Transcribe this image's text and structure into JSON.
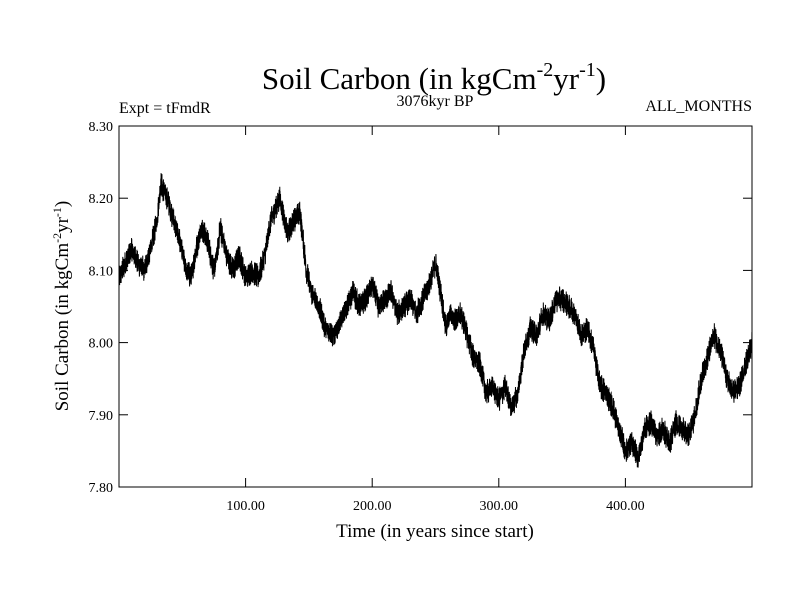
{
  "chart_data": {
    "type": "line",
    "title": {
      "main": "Soil Carbon (in kgCm",
      "sup1": "-2",
      "mid": "yr",
      "sup2": "-1",
      "end": ")"
    },
    "subtitle_left": "Expt = tFmdR",
    "subtitle_center": "3076kyr BP",
    "subtitle_right": "ALL_MONTHS",
    "xlabel": "Time (in years since start)",
    "ylabel": {
      "main": "Soil Carbon (in kgCm",
      "sup1": "-2",
      "mid": "yr",
      "sup2": "-1",
      "end": ")"
    },
    "xlim": [
      0,
      500
    ],
    "ylim": [
      7.8,
      8.3
    ],
    "xticks": [
      100,
      200,
      300,
      400
    ],
    "xtick_labels": [
      "100.00",
      "200.00",
      "300.00",
      "400.00"
    ],
    "yticks": [
      7.8,
      7.9,
      8.0,
      8.1,
      8.2,
      8.3
    ],
    "ytick_labels": [
      "7.80",
      "7.90",
      "8.00",
      "8.10",
      "8.20",
      "8.30"
    ],
    "series": [
      {
        "name": "Soil Carbon",
        "color": "#000000",
        "noise_amplitude": 0.014,
        "x": [
          0,
          5,
          10,
          15,
          20,
          25,
          30,
          33,
          38,
          43,
          48,
          53,
          57,
          60,
          65,
          70,
          75,
          78,
          80,
          85,
          90,
          95,
          100,
          105,
          110,
          115,
          120,
          127,
          133,
          138,
          143,
          148,
          152,
          158,
          163,
          170,
          175,
          180,
          185,
          190,
          195,
          200,
          205,
          210,
          215,
          220,
          225,
          230,
          235,
          240,
          245,
          250,
          255,
          258,
          262,
          265,
          270,
          275,
          280,
          285,
          290,
          295,
          300,
          305,
          310,
          315,
          320,
          325,
          330,
          335,
          340,
          345,
          350,
          355,
          360,
          365,
          370,
          375,
          380,
          385,
          390,
          395,
          400,
          405,
          410,
          415,
          420,
          425,
          430,
          435,
          440,
          445,
          450,
          455,
          460,
          465,
          470,
          475,
          480,
          485,
          490,
          495,
          500
        ],
        "values": [
          8.09,
          8.11,
          8.13,
          8.11,
          8.1,
          8.13,
          8.17,
          8.22,
          8.2,
          8.17,
          8.14,
          8.1,
          8.09,
          8.12,
          8.16,
          8.14,
          8.1,
          8.13,
          8.16,
          8.12,
          8.1,
          8.12,
          8.09,
          8.1,
          8.09,
          8.12,
          8.17,
          8.2,
          8.15,
          8.17,
          8.18,
          8.1,
          8.07,
          8.05,
          8.02,
          8.01,
          8.03,
          8.05,
          8.07,
          8.05,
          8.06,
          8.08,
          8.05,
          8.06,
          8.07,
          8.04,
          8.05,
          8.06,
          8.04,
          8.06,
          8.08,
          8.11,
          8.06,
          8.02,
          8.04,
          8.03,
          8.04,
          8.01,
          7.98,
          7.97,
          7.93,
          7.94,
          7.92,
          7.94,
          7.91,
          7.93,
          7.99,
          8.02,
          8.01,
          8.04,
          8.03,
          8.06,
          8.06,
          8.05,
          8.04,
          8.01,
          8.02,
          7.99,
          7.94,
          7.93,
          7.91,
          7.88,
          7.85,
          7.86,
          7.84,
          7.88,
          7.89,
          7.87,
          7.88,
          7.86,
          7.89,
          7.88,
          7.87,
          7.9,
          7.95,
          7.98,
          8.01,
          7.99,
          7.95,
          7.93,
          7.94,
          7.97,
          8.0
        ]
      }
    ]
  }
}
